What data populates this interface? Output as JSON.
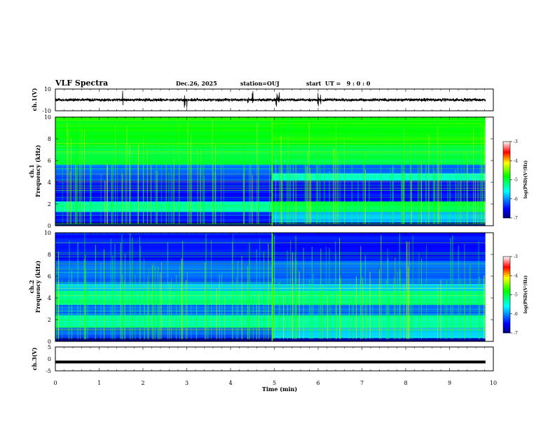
{
  "header": {
    "title": "VLF Spectra",
    "date": "Dec.26, 2025",
    "station": "station=OUJ",
    "start_ut": "start  UT =   9 : 0 : 0"
  },
  "colors": {
    "waveform": "#000000",
    "ch3_level": "#000000",
    "spectrogram_bg": "#0b2a9a"
  },
  "chart_data": [
    {
      "type": "line",
      "name": "ch1-waveform",
      "ylabel": "ch.1(V)",
      "ylim": [
        -10,
        10
      ],
      "yticks": [
        "10",
        "-10"
      ],
      "xlim": [
        0,
        10
      ],
      "description_units": "volts vs minutes",
      "bursts_min": [
        1.55,
        2.95,
        3.0,
        4.4,
        4.5,
        5.05,
        5.1,
        6.0,
        6.05
      ]
    },
    {
      "type": "heatmap",
      "name": "ch1-spectrogram",
      "ylabel": "ch.1\nFrequency (kHz)",
      "ylabel_ch": "ch.1",
      "ylabel_freq": "Frequency (kHz)",
      "ylim": [
        0,
        10
      ],
      "yticks": [
        "10",
        "8",
        "6",
        "4",
        "2",
        "0"
      ],
      "xlim": [
        0,
        10
      ],
      "data_end_min": 9.82,
      "event_time_min": 4.95,
      "colorbar": {
        "label": "log(PSD)(V²/Hz)",
        "range": [
          -7,
          -3
        ],
        "ticks": [
          "-3",
          "-4",
          "-5",
          "-6",
          "-7"
        ]
      }
    },
    {
      "type": "heatmap",
      "name": "ch2-spectrogram",
      "ylabel_ch": "ch.2",
      "ylabel_freq": "Frequency (kHz)",
      "ylim": [
        0,
        10
      ],
      "yticks": [
        "10",
        "8",
        "6",
        "4",
        "2",
        "0"
      ],
      "xlim": [
        0,
        10
      ],
      "data_end_min": 9.82,
      "event_time_min": 4.95,
      "colorbar": {
        "label": "log(PSD)(V²/Hz)",
        "range": [
          -7,
          -3
        ],
        "ticks": [
          "-3",
          "-4",
          "-5",
          "-6",
          "-7"
        ]
      }
    },
    {
      "type": "line",
      "name": "ch3-level",
      "ylabel": "ch.3(V)",
      "ylim": [
        -5,
        5
      ],
      "yticks": [
        "5",
        "0",
        "-5"
      ],
      "xlim": [
        0,
        10
      ],
      "level_v": -1.3,
      "data_end_min": 9.82
    }
  ],
  "xaxis": {
    "label": "Time (min)",
    "ticks": [
      "0",
      "1",
      "2",
      "3",
      "4",
      "5",
      "6",
      "7",
      "8",
      "9",
      "10"
    ]
  },
  "colorbar_label": "log(PSD)(V²/Hz)",
  "colorbar_ticks": [
    "-3",
    "-4",
    "-5",
    "-6",
    "-7"
  ]
}
